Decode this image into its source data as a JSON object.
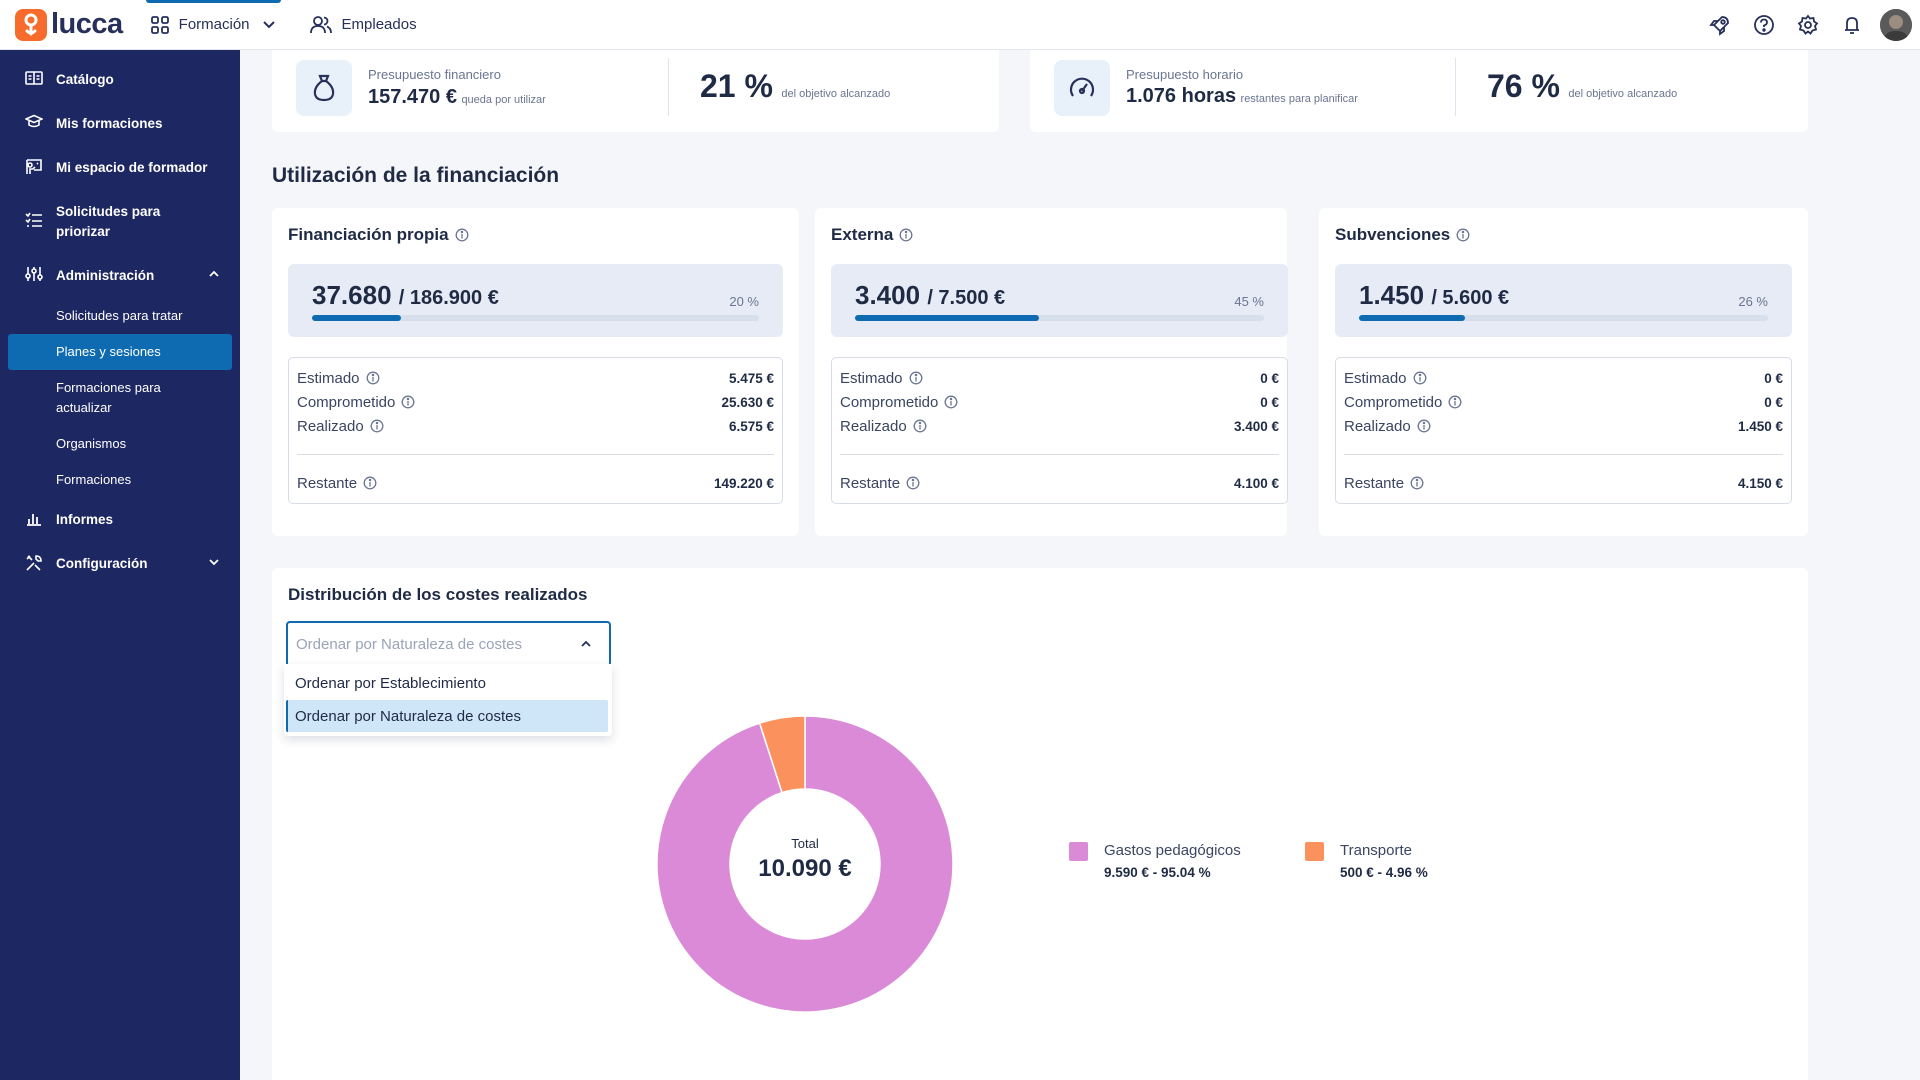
{
  "topbar": {
    "logo_text": "lucca",
    "nav": [
      {
        "label": "Formación",
        "icon": "grid-icon",
        "active": true
      },
      {
        "label": "Empleados",
        "icon": "users-icon",
        "active": false
      }
    ],
    "icons": [
      "rocket-icon",
      "help-icon",
      "settings-icon",
      "bell-icon"
    ]
  },
  "sidebar": {
    "items": [
      {
        "label": "Catálogo",
        "icon": "book-icon"
      },
      {
        "label": "Mis formaciones",
        "icon": "graduation-cap-icon"
      },
      {
        "label": "Mi espacio de formador",
        "icon": "presentation-icon"
      },
      {
        "label": "Solicitudes para priorizar",
        "icon": "list-icon"
      },
      {
        "label": "Administración",
        "icon": "sliders-icon"
      },
      {
        "label": "Informes",
        "icon": "bar-chart-icon"
      },
      {
        "label": "Configuración",
        "icon": "tools-icon"
      }
    ],
    "admin_sub": [
      "Solicitudes para tratar",
      "Planes y sesiones",
      "Formaciones para actualizar",
      "Organismos",
      "Formaciones"
    ],
    "active_sub": "Planes y sesiones"
  },
  "kpis": {
    "financial": {
      "label": "Presupuesto financiero",
      "value": "157.470 €",
      "suffix": "queda por utilizar",
      "percent": "21 %",
      "percent_label": "del objetivo alcanzado"
    },
    "hours": {
      "label": "Presupuesto horario",
      "value": "1.076 horas",
      "suffix": "restantes para planificar",
      "percent": "76 %",
      "percent_label": "del objetivo alcanzado"
    }
  },
  "funding": {
    "title": "Utilización de la financiación",
    "cards": [
      {
        "title": "Financiación propia",
        "used": "37.680",
        "total": "/ 186.900 €",
        "percent": "20 %",
        "fraction": 0.2,
        "rows": [
          {
            "label": "Estimado",
            "value": "5.475 €"
          },
          {
            "label": "Comprometido",
            "value": "25.630 €"
          },
          {
            "label": "Realizado",
            "value": "6.575 €"
          }
        ],
        "remaining": {
          "label": "Restante",
          "value": "149.220 €"
        }
      },
      {
        "title": "Externa",
        "used": "3.400",
        "total": "/ 7.500 €",
        "percent": "45 %",
        "fraction": 0.45,
        "rows": [
          {
            "label": "Estimado",
            "value": "0 €"
          },
          {
            "label": "Comprometido",
            "value": "0 €"
          },
          {
            "label": "Realizado",
            "value": "3.400 €"
          }
        ],
        "remaining": {
          "label": "Restante",
          "value": "4.100 €"
        }
      },
      {
        "title": "Subvenciones",
        "used": "1.450",
        "total": "/ 5.600 €",
        "percent": "26 %",
        "fraction": 0.26,
        "rows": [
          {
            "label": "Estimado",
            "value": "0 €"
          },
          {
            "label": "Comprometido",
            "value": "0 €"
          },
          {
            "label": "Realizado",
            "value": "1.450 €"
          }
        ],
        "remaining": {
          "label": "Restante",
          "value": "4.150 €"
        }
      }
    ]
  },
  "distribution": {
    "title": "Distribución de los costes realizados",
    "select_placeholder": "Ordenar por Naturaleza de costes",
    "options": [
      "Ordenar por Establecimiento",
      "Ordenar por Naturaleza de costes"
    ],
    "selected_option": "Ordenar por Naturaleza de costes",
    "total_label": "Total",
    "total_value": "10.090 €"
  },
  "chart_data": {
    "type": "pie",
    "categories": [
      "Gastos pedagógicos",
      "Transporte"
    ],
    "values": [
      9590,
      500
    ],
    "labels": [
      "9.590 € - 95.04 %",
      "500 € - 4.96 %"
    ],
    "colors": [
      "#da8ad6",
      "#fb915d"
    ],
    "legend": "right"
  }
}
